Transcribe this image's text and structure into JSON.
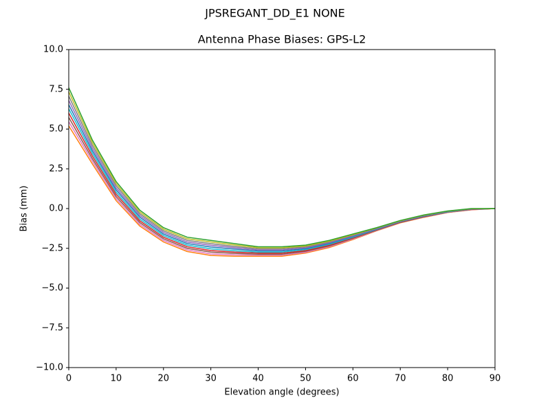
{
  "chart_data": {
    "type": "line",
    "suptitle": "JPSREGANT_DD_E1 NONE",
    "title": "Antenna Phase Biases: GPS-L2",
    "xlabel": "Elevation angle (degrees)",
    "ylabel": "Bias (mm)",
    "x": [
      0,
      5,
      10,
      15,
      20,
      25,
      30,
      35,
      40,
      45,
      50,
      55,
      60,
      65,
      70,
      75,
      80,
      85,
      90
    ],
    "xlim": [
      0,
      90
    ],
    "xticks": [
      0,
      10,
      20,
      30,
      40,
      50,
      60,
      70,
      80,
      90
    ],
    "ylim": [
      -10,
      10
    ],
    "yticks": [
      {
        "value": -10,
        "label": "−10.0"
      },
      {
        "value": -7.5,
        "label": "−7.5"
      },
      {
        "value": -5,
        "label": "−5.0"
      },
      {
        "value": -2.5,
        "label": "−2.5"
      },
      {
        "value": 0,
        "label": "0.0"
      },
      {
        "value": 2.5,
        "label": "2.5"
      },
      {
        "value": 5,
        "label": "5.0"
      },
      {
        "value": 7.5,
        "label": "7.5"
      },
      {
        "value": 10,
        "label": "10.0"
      }
    ],
    "series": [
      {
        "color": "#ff7f0e",
        "values": [
          5.2,
          2.8,
          0.5,
          -1.1,
          -2.1,
          -2.7,
          -2.95,
          -3.0,
          -3.0,
          -3.0,
          -2.8,
          -2.45,
          -1.95,
          -1.4,
          -0.9,
          -0.55,
          -0.25,
          -0.08,
          0
        ]
      },
      {
        "color": "#e377c2",
        "values": [
          5.46,
          2.97,
          0.63,
          -0.99,
          -2.0,
          -2.6,
          -2.85,
          -2.91,
          -2.93,
          -2.93,
          -2.75,
          -2.4,
          -1.91,
          -1.38,
          -0.88,
          -0.53,
          -0.24,
          -0.07,
          0
        ]
      },
      {
        "color": "#8c564b",
        "values": [
          5.73,
          3.13,
          0.76,
          -0.88,
          -1.9,
          -2.5,
          -2.74,
          -2.82,
          -2.87,
          -2.87,
          -2.69,
          -2.35,
          -1.87,
          -1.36,
          -0.87,
          -0.52,
          -0.23,
          -0.06,
          0
        ]
      },
      {
        "color": "#d62728",
        "values": [
          6.0,
          3.3,
          0.9,
          -0.77,
          -1.8,
          -2.4,
          -2.64,
          -2.74,
          -2.8,
          -2.8,
          -2.64,
          -2.3,
          -1.83,
          -1.33,
          -0.85,
          -0.5,
          -0.22,
          -0.05,
          0
        ]
      },
      {
        "color": "#17becf",
        "values": [
          6.27,
          3.47,
          1.03,
          -0.66,
          -1.7,
          -2.3,
          -2.53,
          -2.65,
          -2.74,
          -2.74,
          -2.58,
          -2.25,
          -1.8,
          -1.31,
          -0.83,
          -0.48,
          -0.21,
          -0.04,
          0
        ]
      },
      {
        "color": "#1f77b4",
        "values": [
          6.53,
          3.63,
          1.17,
          -0.54,
          -1.6,
          -2.2,
          -2.42,
          -2.55,
          -2.66,
          -2.66,
          -2.52,
          -2.2,
          -1.75,
          -1.29,
          -0.82,
          -0.47,
          -0.19,
          -0.04,
          0
        ]
      },
      {
        "color": "#9467bd",
        "values": [
          6.8,
          3.8,
          1.3,
          -0.43,
          -1.5,
          -2.1,
          -2.31,
          -2.46,
          -2.6,
          -2.6,
          -2.47,
          -2.15,
          -1.72,
          -1.27,
          -0.8,
          -0.45,
          -0.18,
          -0.03,
          0
        ]
      },
      {
        "color": "#7f7f7f",
        "values": [
          7.07,
          3.97,
          1.44,
          -0.32,
          -1.4,
          -2.0,
          -2.21,
          -2.38,
          -2.53,
          -2.53,
          -2.41,
          -2.1,
          -1.68,
          -1.24,
          -0.78,
          -0.43,
          -0.17,
          -0.02,
          0
        ]
      },
      {
        "color": "#bcbd22",
        "values": [
          7.34,
          4.14,
          1.57,
          -0.21,
          -1.3,
          -1.9,
          -2.1,
          -2.29,
          -2.47,
          -2.47,
          -2.36,
          -2.05,
          -1.64,
          -1.22,
          -0.77,
          -0.42,
          -0.16,
          -0.01,
          0
        ]
      },
      {
        "color": "#2ca02c",
        "values": [
          7.6,
          4.3,
          1.7,
          -0.1,
          -1.2,
          -1.8,
          -2.0,
          -2.2,
          -2.4,
          -2.4,
          -2.3,
          -2.0,
          -1.6,
          -1.2,
          -0.75,
          -0.4,
          -0.15,
          0,
          0
        ]
      }
    ]
  }
}
